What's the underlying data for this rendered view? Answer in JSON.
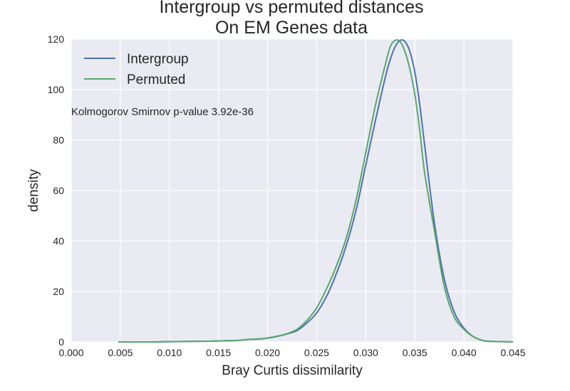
{
  "chart_data": {
    "type": "line",
    "title": "Intergroup vs permuted distances",
    "subtitle": "On EM Genes data",
    "xlabel": "Bray Curtis dissimilarity",
    "ylabel": "density",
    "xlim": [
      0.0,
      0.045
    ],
    "ylim": [
      0,
      120
    ],
    "xticks": [
      "0.000",
      "0.005",
      "0.010",
      "0.015",
      "0.020",
      "0.025",
      "0.030",
      "0.035",
      "0.040",
      "0.045"
    ],
    "yticks": [
      "0",
      "20",
      "40",
      "60",
      "80",
      "100",
      "120"
    ],
    "grid": true,
    "legend_position": "top-left",
    "annotation": "Kolmogorov Smirnov p-value 3.92e-36",
    "series": [
      {
        "name": "Intergroup",
        "color": "#4c72b0",
        "x": [
          0.0048,
          0.008,
          0.01,
          0.012,
          0.014,
          0.016,
          0.017,
          0.018,
          0.019,
          0.02,
          0.021,
          0.022,
          0.023,
          0.024,
          0.025,
          0.026,
          0.027,
          0.028,
          0.029,
          0.03,
          0.031,
          0.032,
          0.0325,
          0.033,
          0.0335,
          0.034,
          0.0345,
          0.035,
          0.0355,
          0.036,
          0.037,
          0.038,
          0.039,
          0.04,
          0.041,
          0.042,
          0.043,
          0.044,
          0.045
        ],
        "y": [
          0,
          0,
          0.1,
          0.2,
          0.3,
          0.5,
          0.6,
          1.0,
          1.1,
          1.5,
          2.2,
          3.2,
          4.5,
          7.5,
          11.5,
          18,
          27,
          38,
          52,
          70,
          88,
          105,
          112,
          117,
          119.5,
          119,
          115,
          107,
          94,
          78,
          47,
          25,
          12,
          5.5,
          2,
          0.5,
          0.2,
          0.1,
          0
        ]
      },
      {
        "name": "Permuted",
        "color": "#55a868",
        "x": [
          0.0048,
          0.008,
          0.01,
          0.012,
          0.014,
          0.016,
          0.017,
          0.018,
          0.019,
          0.02,
          0.021,
          0.022,
          0.023,
          0.024,
          0.025,
          0.026,
          0.027,
          0.028,
          0.029,
          0.03,
          0.031,
          0.032,
          0.0325,
          0.033,
          0.0335,
          0.034,
          0.0345,
          0.035,
          0.0355,
          0.036,
          0.037,
          0.038,
          0.039,
          0.04,
          0.041,
          0.042,
          0.043,
          0.044,
          0.045
        ],
        "y": [
          0,
          0,
          0.1,
          0.2,
          0.3,
          0.5,
          0.6,
          1.0,
          1.2,
          1.6,
          2.3,
          3.3,
          5.0,
          8.5,
          13.5,
          21,
          30,
          41,
          56,
          75,
          94,
          110,
          117,
          119.5,
          119,
          115,
          108,
          98,
          84,
          67,
          44,
          22,
          10,
          5,
          2,
          0.5,
          0.2,
          0.1,
          0
        ]
      }
    ]
  }
}
